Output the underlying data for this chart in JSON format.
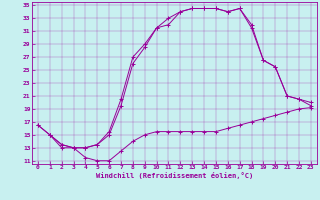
{
  "xlabel": "Windchill (Refroidissement éolien,°C)",
  "bg_color": "#c8f0f0",
  "line_color": "#990099",
  "xlim": [
    -0.5,
    23.5
  ],
  "ylim": [
    10.5,
    35.5
  ],
  "xticks": [
    0,
    1,
    2,
    3,
    4,
    5,
    6,
    7,
    8,
    9,
    10,
    11,
    12,
    13,
    14,
    15,
    16,
    17,
    18,
    19,
    20,
    21,
    22,
    23
  ],
  "yticks": [
    11,
    13,
    15,
    17,
    19,
    21,
    23,
    25,
    27,
    29,
    31,
    33,
    35
  ],
  "line1_x": [
    0,
    1,
    2,
    3,
    4,
    5,
    6,
    7,
    8,
    9,
    10,
    11,
    12,
    13,
    14,
    15,
    16,
    17,
    18,
    19,
    20,
    21,
    22,
    23
  ],
  "line1_y": [
    16.5,
    15,
    13,
    13,
    11.5,
    11,
    11,
    12.5,
    14,
    15,
    15.5,
    15.5,
    15.5,
    15.5,
    15.5,
    15.5,
    16,
    16.5,
    17,
    17.5,
    18,
    18.5,
    19,
    19.2
  ],
  "line2_x": [
    0,
    1,
    2,
    3,
    4,
    5,
    6,
    7,
    8,
    9,
    10,
    11,
    12,
    13,
    14,
    15,
    16,
    17,
    18,
    19,
    20,
    21,
    22,
    23
  ],
  "line2_y": [
    16.5,
    15,
    13.5,
    13,
    13,
    13.5,
    15,
    19.5,
    26,
    28.5,
    31.5,
    33,
    34,
    34.5,
    34.5,
    34.5,
    34,
    34.5,
    32,
    26.5,
    25.5,
    21,
    20.5,
    19.5
  ],
  "line3_x": [
    1,
    2,
    3,
    4,
    5,
    6,
    7,
    8,
    9,
    10,
    11,
    12,
    13,
    14,
    15,
    16,
    17,
    18,
    19,
    20,
    21,
    22,
    23
  ],
  "line3_y": [
    15,
    13.5,
    13,
    13,
    13.5,
    15.5,
    20.5,
    27,
    29,
    31.5,
    32,
    34,
    34.5,
    34.5,
    34.5,
    34,
    34.5,
    31.5,
    26.5,
    25.5,
    21,
    20.5,
    20
  ]
}
